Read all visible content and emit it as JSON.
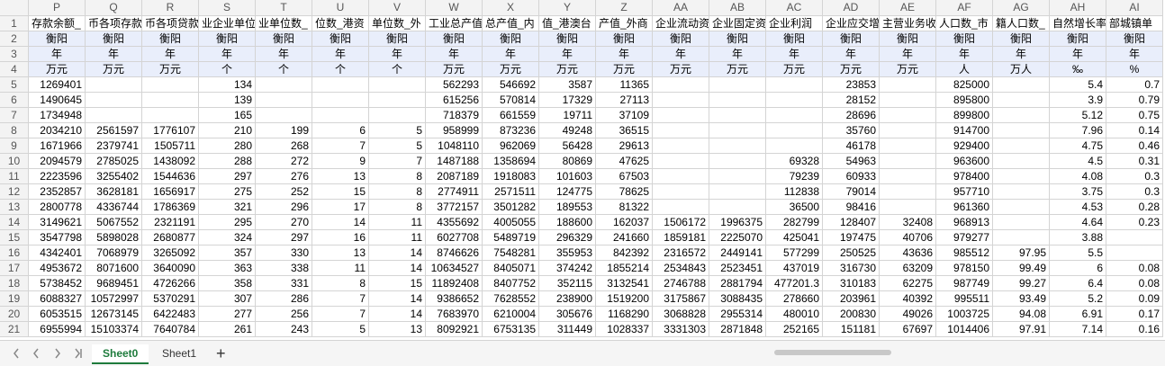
{
  "columns": [
    "P",
    "Q",
    "R",
    "S",
    "T",
    "U",
    "V",
    "W",
    "X",
    "Y",
    "Z",
    "AA",
    "AB",
    "AC",
    "AD",
    "AE",
    "AF",
    "AG",
    "AH",
    "AI"
  ],
  "row_numbers": [
    1,
    2,
    3,
    4,
    5,
    6,
    7,
    8,
    9,
    10,
    11,
    12,
    13,
    14,
    15,
    16,
    17,
    18,
    19,
    20,
    21
  ],
  "rows": [
    [
      "存款余额_",
      "币各项存款",
      "币各项贷款",
      "业企业单位",
      "业单位数_",
      "位数_港资",
      "单位数_外",
      "工业总产值",
      "总产值_内",
      "值_港澳台",
      "产值_外商",
      "企业流动资",
      "企业固定资",
      "企业利润",
      "企业应交增",
      "主营业务收",
      "人口数_市",
      "籍人口数_",
      "自然增长率",
      "部城镇单"
    ],
    [
      "衡阳",
      "衡阳",
      "衡阳",
      "衡阳",
      "衡阳",
      "衡阳",
      "衡阳",
      "衡阳",
      "衡阳",
      "衡阳",
      "衡阳",
      "衡阳",
      "衡阳",
      "衡阳",
      "衡阳",
      "衡阳",
      "衡阳",
      "衡阳",
      "衡阳",
      "衡阳"
    ],
    [
      "年",
      "年",
      "年",
      "年",
      "年",
      "年",
      "年",
      "年",
      "年",
      "年",
      "年",
      "年",
      "年",
      "年",
      "年",
      "年",
      "年",
      "年",
      "年",
      "年"
    ],
    [
      "万元",
      "万元",
      "万元",
      "个",
      "个",
      "个",
      "个",
      "万元",
      "万元",
      "万元",
      "万元",
      "万元",
      "万元",
      "万元",
      "万元",
      "万元",
      "人",
      "万人",
      "‰",
      "%"
    ],
    [
      1269401,
      null,
      null,
      134,
      null,
      null,
      null,
      562293,
      546692,
      3587,
      11365,
      null,
      null,
      null,
      23853,
      null,
      825000,
      null,
      5.4,
      0.7
    ],
    [
      1490645,
      null,
      null,
      139,
      null,
      null,
      null,
      615256,
      570814,
      17329,
      27113,
      null,
      null,
      null,
      28152,
      null,
      895800,
      null,
      3.9,
      0.79
    ],
    [
      1734948,
      null,
      null,
      165,
      null,
      null,
      null,
      718379,
      661559,
      19711,
      37109,
      null,
      null,
      null,
      28696,
      null,
      899800,
      null,
      5.12,
      0.75
    ],
    [
      2034210,
      2561597,
      1776107,
      210,
      199,
      6,
      5,
      958999,
      873236,
      49248,
      36515,
      null,
      null,
      null,
      35760,
      null,
      914700,
      null,
      7.96,
      0.14
    ],
    [
      1671966,
      2379741,
      1505711,
      280,
      268,
      7,
      5,
      1048110,
      962069,
      56428,
      29613,
      null,
      null,
      null,
      46178,
      null,
      929400,
      null,
      4.75,
      0.46
    ],
    [
      2094579,
      2785025,
      1438092,
      288,
      272,
      9,
      7,
      1487188,
      1358694,
      80869,
      47625,
      null,
      null,
      69328,
      54963,
      null,
      963600,
      null,
      4.5,
      0.31
    ],
    [
      2223596,
      3255402,
      1544636,
      297,
      276,
      13,
      8,
      2087189,
      1918083,
      101603,
      67503,
      null,
      null,
      79239,
      60933,
      null,
      978400,
      null,
      4.08,
      0.3
    ],
    [
      2352857,
      3628181,
      1656917,
      275,
      252,
      15,
      8,
      2774911,
      2571511,
      124775,
      78625,
      null,
      null,
      112838,
      79014,
      null,
      957710,
      null,
      3.75,
      0.3
    ],
    [
      2800778,
      4336744,
      1786369,
      321,
      296,
      17,
      8,
      3772157,
      3501282,
      189553,
      81322,
      null,
      null,
      36500,
      98416,
      null,
      961360,
      null,
      4.53,
      0.28
    ],
    [
      3149621,
      5067552,
      2321191,
      295,
      270,
      14,
      11,
      4355692,
      4005055,
      188600,
      162037,
      1506172,
      1996375,
      282799,
      128407,
      32408,
      968913,
      null,
      4.64,
      0.23
    ],
    [
      3547798,
      5898028,
      2680877,
      324,
      297,
      16,
      11,
      6027708,
      5489719,
      296329,
      241660,
      1859181,
      2225070,
      425041,
      197475,
      40706,
      979277,
      null,
      3.88,
      null
    ],
    [
      4342401,
      7068979,
      3265092,
      357,
      330,
      13,
      14,
      8746626,
      7548281,
      355953,
      842392,
      2316572,
      2449141,
      577299,
      250525,
      43636,
      985512,
      97.95,
      5.5,
      null
    ],
    [
      4953672,
      8071600,
      3640090,
      363,
      338,
      11,
      14,
      10634527,
      8405071,
      374242,
      1855214,
      2534843,
      2523451,
      437019,
      316730,
      63209,
      978150,
      99.49,
      6,
      0.08
    ],
    [
      5738452,
      9689451,
      4726266,
      358,
      331,
      8,
      15,
      11892408,
      8407752,
      352115,
      3132541,
      2746788,
      2881794,
      477201.3,
      310183,
      62275,
      987749,
      99.27,
      6.4,
      0.08
    ],
    [
      6088327,
      10572997,
      5370291,
      307,
      286,
      7,
      14,
      9386652,
      7628552,
      238900,
      1519200,
      3175867,
      3088435,
      278660,
      203961,
      40392,
      995511,
      93.49,
      5.2,
      0.09
    ],
    [
      6053515,
      12673145,
      6422483,
      277,
      256,
      7,
      14,
      7683970,
      6210004,
      305676,
      1168290,
      3068828,
      2955314,
      480010,
      200830,
      49026,
      1003725,
      94.08,
      6.91,
      0.17
    ],
    [
      6955994,
      15103374,
      7640784,
      261,
      243,
      5,
      13,
      8092921,
      6753135,
      311449,
      1028337,
      3331303,
      2871848,
      252165,
      151181,
      67697,
      1014406,
      97.91,
      7.14,
      0.16
    ]
  ],
  "sheets": [
    "Sheet0",
    "Sheet1"
  ]
}
